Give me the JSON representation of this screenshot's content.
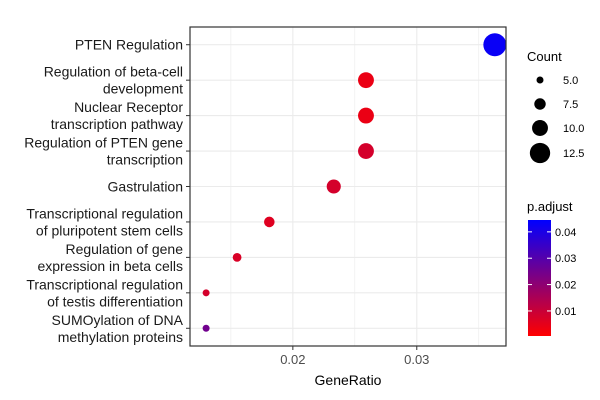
{
  "chart_data": {
    "type": "scatter",
    "chart_style": "dotplot",
    "xlabel": "GeneRatio",
    "ylabel": "",
    "xlim": [
      0.0117,
      0.0372
    ],
    "x_ticks": [
      0.02,
      0.03
    ],
    "x_tick_labels": [
      "0.02",
      "0.03"
    ],
    "grid": true,
    "categories": [
      {
        "label_lines": [
          "PTEN Regulation"
        ],
        "gene_ratio": 0.0363,
        "count": 14,
        "p_adjust": 0.043
      },
      {
        "label_lines": [
          "Regulation of beta-cell",
          "development"
        ],
        "gene_ratio": 0.0259,
        "count": 10,
        "p_adjust": 0.004
      },
      {
        "label_lines": [
          "Nuclear Receptor",
          "transcription pathway"
        ],
        "gene_ratio": 0.0259,
        "count": 10,
        "p_adjust": 0.004
      },
      {
        "label_lines": [
          "Regulation of PTEN gene",
          "transcription"
        ],
        "gene_ratio": 0.0259,
        "count": 10,
        "p_adjust": 0.008
      },
      {
        "label_lines": [
          "Gastrulation"
        ],
        "gene_ratio": 0.0233,
        "count": 9,
        "p_adjust": 0.008
      },
      {
        "label_lines": [
          "Transcriptional regulation",
          "of pluripotent stem cells"
        ],
        "gene_ratio": 0.0181,
        "count": 7,
        "p_adjust": 0.006
      },
      {
        "label_lines": [
          "Regulation of gene",
          "expression in beta cells"
        ],
        "gene_ratio": 0.0155,
        "count": 6,
        "p_adjust": 0.007
      },
      {
        "label_lines": [
          "Transcriptional regulation",
          "of testis differentiation"
        ],
        "gene_ratio": 0.013,
        "count": 5,
        "p_adjust": 0.008
      },
      {
        "label_lines": [
          "SUMOylation of DNA",
          "methylation proteins"
        ],
        "gene_ratio": 0.013,
        "count": 5,
        "p_adjust": 0.025
      }
    ],
    "size_legend": {
      "title": "Count",
      "values": [
        5,
        7.5,
        10,
        12.5
      ],
      "labels": [
        "5.0",
        "7.5",
        "10.0",
        "12.5"
      ]
    },
    "color_legend": {
      "title": "p.adjust",
      "range": [
        0.0005,
        0.0445
      ],
      "ticks": [
        0.01,
        0.02,
        0.03,
        0.04
      ],
      "tick_labels": [
        "0.01",
        "0.02",
        "0.03",
        "0.04"
      ],
      "low_color": "#ff0000",
      "high_color": "#0000ff"
    },
    "colors": {
      "panel_border": "#333333",
      "grid": "#ebebeb",
      "background": "#ffffff"
    }
  }
}
